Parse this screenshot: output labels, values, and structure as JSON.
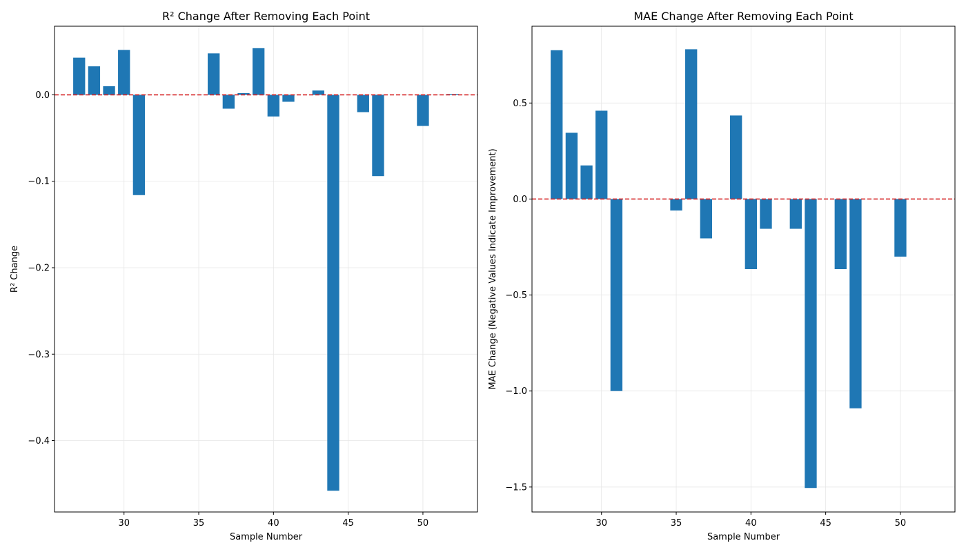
{
  "colors": {
    "bar": "#1f77b4",
    "baseline": "#d62728",
    "grid": "#e6e6e6",
    "axis": "#000000"
  },
  "chart_data": [
    {
      "type": "bar",
      "title": "R² Change After Removing Each Point",
      "xlabel": "Sample Number",
      "ylabel": "R² Change",
      "xlim": [
        25.35,
        53.65
      ],
      "ylim": [
        -0.4826,
        0.0794
      ],
      "xticks": [
        30,
        35,
        40,
        45,
        50
      ],
      "xtick_labels": [
        "30",
        "35",
        "40",
        "45",
        "50"
      ],
      "yticks": [
        -0.4,
        -0.3,
        -0.2,
        -0.1,
        0.0
      ],
      "ytick_labels": [
        "−0.4",
        "−0.3",
        "−0.2",
        "−0.1",
        "0.0"
      ],
      "grid": true,
      "reference_line": 0,
      "x": [
        27,
        28,
        29,
        30,
        31,
        36,
        37,
        38,
        39,
        40,
        41,
        43,
        44,
        46,
        47,
        50,
        52
      ],
      "values": [
        0.043,
        0.033,
        0.01,
        0.052,
        -0.116,
        0.048,
        -0.016,
        0.002,
        0.054,
        -0.025,
        -0.008,
        0.005,
        -0.458,
        -0.02,
        -0.094,
        -0.036,
        0.001
      ]
    },
    {
      "type": "bar",
      "title": "MAE Change After Removing Each Point",
      "xlabel": "Sample Number",
      "ylabel": "MAE Change (Negative Values Indicate Improvement)",
      "xlim": [
        25.35,
        53.65
      ],
      "ylim": [
        -1.63,
        0.9
      ],
      "xticks": [
        30,
        35,
        40,
        45,
        50
      ],
      "xtick_labels": [
        "30",
        "35",
        "40",
        "45",
        "50"
      ],
      "yticks": [
        -1.5,
        -1.0,
        -0.5,
        0.0,
        0.5
      ],
      "ytick_labels": [
        "−1.5",
        "−1.0",
        "−0.5",
        "0.0",
        "0.5"
      ],
      "grid": true,
      "reference_line": 0,
      "x": [
        27,
        28,
        29,
        30,
        31,
        35,
        36,
        37,
        39,
        40,
        41,
        43,
        44,
        46,
        47,
        50
      ],
      "values": [
        0.775,
        0.345,
        0.175,
        0.46,
        -1.0,
        -0.06,
        0.78,
        -0.205,
        0.435,
        -0.365,
        -0.155,
        -0.155,
        -1.505,
        -0.365,
        -1.09,
        -0.3
      ]
    }
  ]
}
